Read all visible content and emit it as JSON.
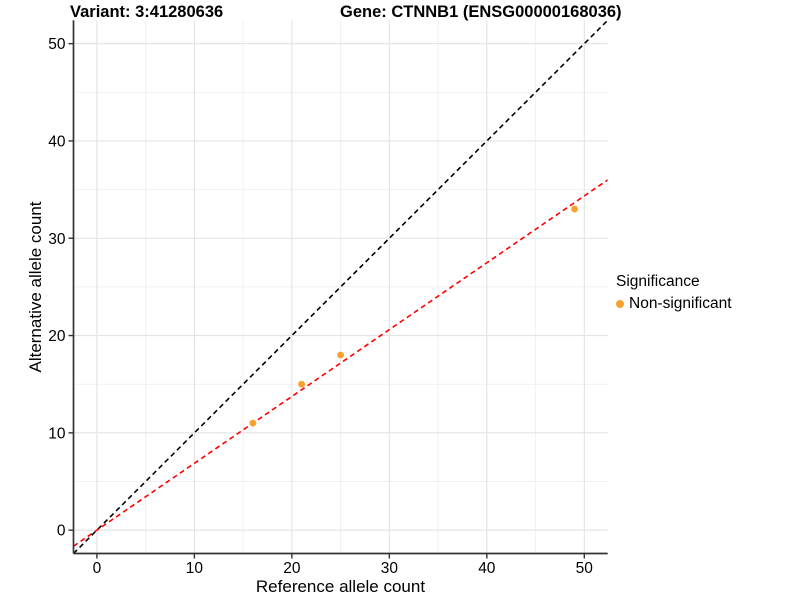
{
  "titles": {
    "left": "Variant: 3:41280636",
    "right": "Gene: CTNNB1 (ENSG00000168036)"
  },
  "legend": {
    "title": "Significance",
    "entries": [
      {
        "label": "Non-significant",
        "color": "#F9A12C"
      }
    ]
  },
  "chart_data": {
    "type": "scatter",
    "title": "Variant: 3:41280636 | Gene: CTNNB1 (ENSG00000168036)",
    "xlabel": "Reference allele count",
    "ylabel": "Alternative allele count",
    "xlim": [
      -2.4,
      52.4
    ],
    "ylim": [
      -2.4,
      52.4
    ],
    "xticks": [
      0,
      10,
      20,
      30,
      40,
      50
    ],
    "yticks": [
      0,
      10,
      20,
      30,
      40,
      50
    ],
    "minor_ticks": [
      5,
      15,
      25,
      35,
      45
    ],
    "grid": true,
    "legend_position": "right",
    "series": [
      {
        "name": "Non-significant",
        "color": "#F9A12C",
        "points": [
          {
            "x": 16,
            "y": 11
          },
          {
            "x": 21,
            "y": 15
          },
          {
            "x": 25,
            "y": 18
          },
          {
            "x": 49,
            "y": 33
          }
        ]
      }
    ],
    "reference_lines": [
      {
        "name": "identity-line",
        "slope": 1,
        "intercept": 0,
        "color": "#000000",
        "style": "dashed"
      },
      {
        "name": "regression-line",
        "slope": 0.687,
        "intercept": 0,
        "color": "#FF0000",
        "style": "dashed"
      }
    ],
    "colors": {
      "point": "#F9A12C",
      "major_grid": "#e3e3e3",
      "minor_grid": "#f1f1f1",
      "axis_line": "#333333",
      "background": "#ffffff"
    }
  }
}
